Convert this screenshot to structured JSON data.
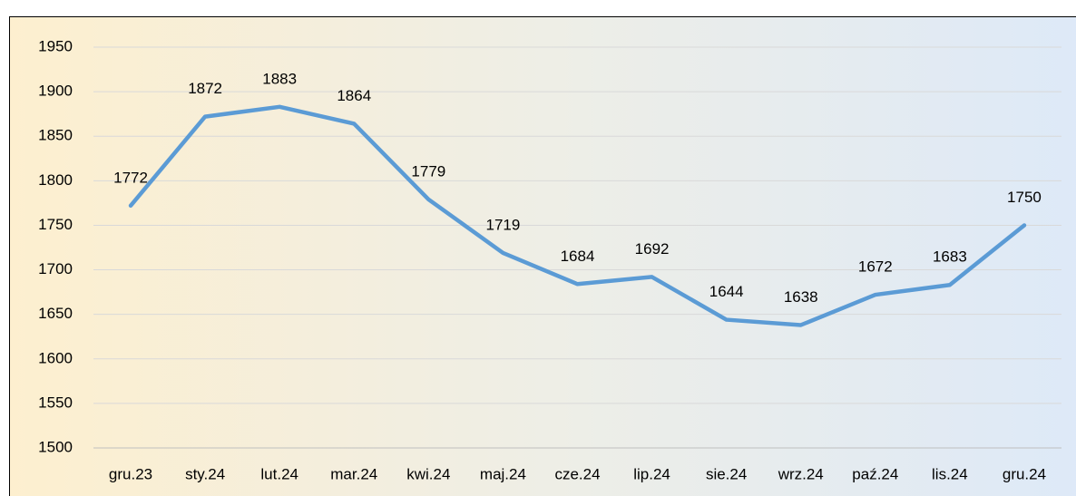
{
  "chart_data": {
    "type": "line",
    "categories": [
      "gru.23",
      "sty.24",
      "lut.24",
      "mar.24",
      "kwi.24",
      "maj.24",
      "cze.24",
      "lip.24",
      "sie.24",
      "wrz.24",
      "paź.24",
      "lis.24",
      "gru.24"
    ],
    "series": [
      {
        "color": "#5b9bd5",
        "values": [
          1772,
          1872,
          1883,
          1864,
          1779,
          1719,
          1684,
          1692,
          1644,
          1638,
          1672,
          1683,
          1750
        ]
      }
    ],
    "ylim": [
      1500,
      1950
    ],
    "yticks": [
      1500,
      1550,
      1600,
      1650,
      1700,
      1750,
      1800,
      1850,
      1900,
      1950
    ],
    "grid": true,
    "data_labels": true
  }
}
